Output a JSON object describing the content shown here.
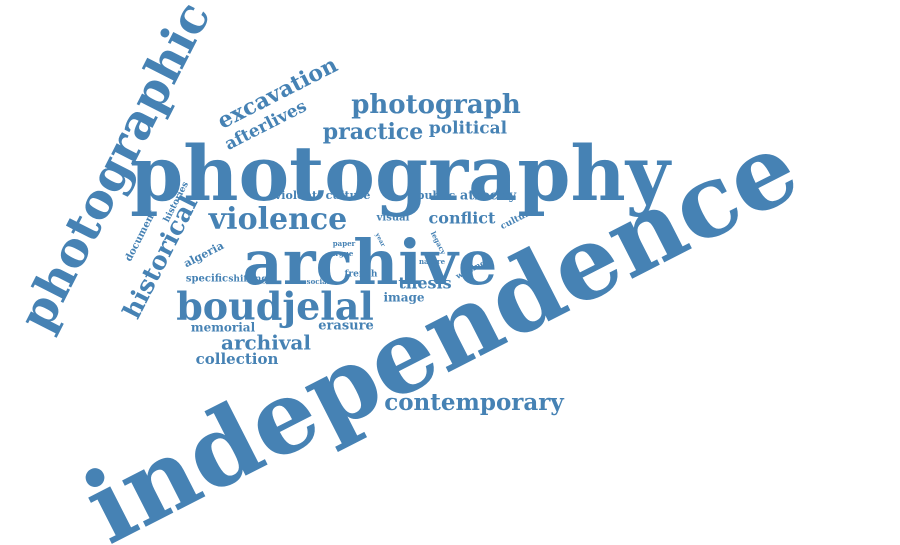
{
  "color": "#4682B4",
  "background": "#FFFFFF",
  "words": [
    {
      "id": "independence",
      "text": "independence"
    },
    {
      "id": "photography",
      "text": "photography"
    },
    {
      "id": "archive",
      "text": "archive"
    },
    {
      "id": "photographic",
      "text": "photographic"
    },
    {
      "id": "boudjelal",
      "text": "boudjelal"
    },
    {
      "id": "violence",
      "text": "violence"
    },
    {
      "id": "historical",
      "text": "historical"
    },
    {
      "id": "photograph",
      "text": "photograph"
    },
    {
      "id": "excavation",
      "text": "excavation"
    },
    {
      "id": "afterlives",
      "text": "afterlives"
    },
    {
      "id": "practice",
      "text": "practice"
    },
    {
      "id": "political",
      "text": "political"
    },
    {
      "id": "contemporary",
      "text": "contemporary"
    },
    {
      "id": "archival",
      "text": "archival"
    },
    {
      "id": "collection",
      "text": "collection"
    },
    {
      "id": "memorial",
      "text": "memorial"
    },
    {
      "id": "erasure",
      "text": "erasure"
    },
    {
      "id": "thesis",
      "text": "thesis"
    },
    {
      "id": "conflict",
      "text": "conflict"
    },
    {
      "id": "image",
      "text": "image"
    },
    {
      "id": "violent",
      "text": "violent"
    },
    {
      "id": "culture",
      "text": "culture"
    },
    {
      "id": "public",
      "text": "public"
    },
    {
      "id": "atrocity",
      "text": "atrocity"
    },
    {
      "id": "visual",
      "text": "visual"
    },
    {
      "id": "cultural",
      "text": "cultural"
    },
    {
      "id": "algeria",
      "text": "algeria"
    },
    {
      "id": "document",
      "text": "document"
    },
    {
      "id": "histories",
      "text": "histories"
    },
    {
      "id": "specific",
      "text": "specific"
    },
    {
      "id": "shifting",
      "text": "shifting"
    },
    {
      "id": "social",
      "text": "social"
    },
    {
      "id": "french",
      "text": "french"
    },
    {
      "id": "paper",
      "text": "paper"
    },
    {
      "id": "argue",
      "text": "argue"
    },
    {
      "id": "nature",
      "text": "nature"
    },
    {
      "id": "legacy",
      "text": "legacy"
    },
    {
      "id": "writing",
      "text": "writing"
    },
    {
      "id": "year",
      "text": "year"
    }
  ]
}
